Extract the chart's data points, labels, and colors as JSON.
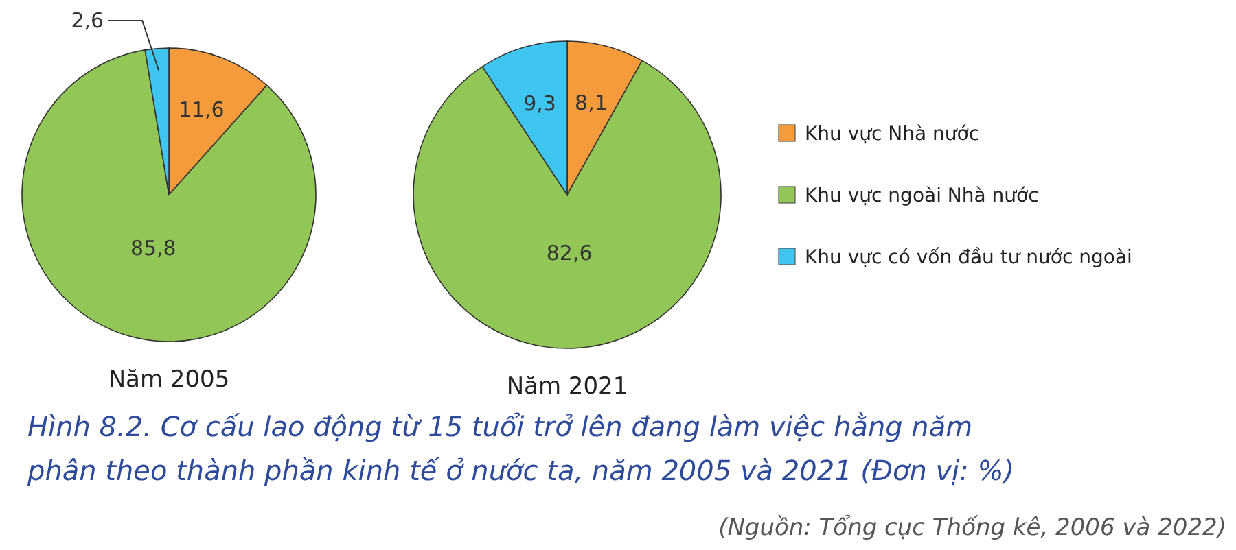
{
  "chart_data": [
    {
      "type": "pie",
      "title": "Năm 2005",
      "values": [
        11.6,
        85.8,
        2.6
      ],
      "colors": [
        "#f59b3c",
        "#92c656",
        "#3fc6f0"
      ],
      "value_labels": [
        "11,6",
        "85,8",
        "2,6"
      ],
      "legend": false
    },
    {
      "type": "pie",
      "title": "Năm 2021",
      "categories": [
        "Khu vực Nhà nước",
        "Khu vực ngoài Nhà nước",
        "Khu vực có vốn đầu tư nước ngoài"
      ],
      "values": [
        8.1,
        82.6,
        9.3
      ],
      "colors": [
        "#f59b3c",
        "#92c656",
        "#3fc6f0"
      ],
      "value_labels": [
        "8,1",
        "82,6",
        "9,3"
      ],
      "legend": "right",
      "annotations": [
        "Hình 8.2. Cơ cấu lao động từ 15 tuổi trở lên đang làm việc hằng năm phân theo thành phần kinh tế ở nước ta, năm 2005 và 2021 (Đơn vị: %)",
        "(Nguồn: Tổng cục Thống kê, 2006 và 2022)"
      ]
    }
  ]
}
